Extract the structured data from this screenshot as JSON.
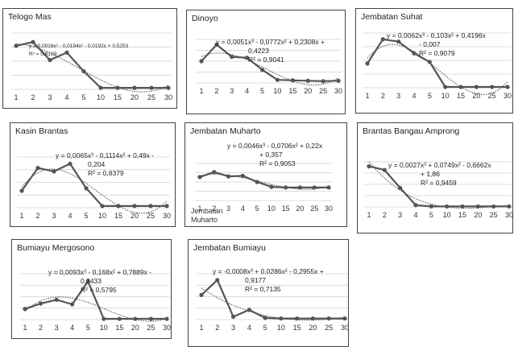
{
  "chart_data": [
    {
      "type": "line",
      "title": "Telogo Mas",
      "categories": [
        "1",
        "2",
        "3",
        "4",
        "5",
        "10",
        "15",
        "20",
        "25",
        "30"
      ],
      "series": [
        {
          "values": [
            5.8,
            6.3,
            3.9,
            4.9,
            2.4,
            0.2,
            0.2,
            0.2,
            0.2,
            0.2
          ]
        }
      ],
      "trendline": "polynomial",
      "equation_lines": [
        "y = 0,0016x³ - 0,0194x² - 0,0192x + 0,5253",
        "R² = 0,9109"
      ],
      "ylim": [
        0,
        7.5
      ],
      "grid": "horizontal"
    },
    {
      "type": "line",
      "title": "Dinoyo",
      "categories": [
        "1",
        "2",
        "3",
        "4",
        "5",
        "10",
        "15",
        "20",
        "25",
        "30"
      ],
      "series": [
        {
          "values": [
            2.5,
            4.4,
            3.0,
            2.9,
            1.5,
            0.35,
            0.3,
            0.25,
            0.2,
            0.25
          ]
        }
      ],
      "trendline": "polynomial",
      "equation_lines": [
        "y = 0,0051x³ - 0,0772x² + 0,2308x +",
        "0,4223",
        "R² = 0,9041"
      ],
      "ylim": [
        0,
        5
      ],
      "grid": "horizontal"
    },
    {
      "type": "line",
      "title": "Jembatan Suhat",
      "categories": [
        "1",
        "2",
        "3",
        "4",
        "5",
        "10",
        "15",
        "20",
        "25",
        "30"
      ],
      "series": [
        {
          "values": [
            3.1,
            6.2,
            5.9,
            4.4,
            3.3,
            0.1,
            0.1,
            0.1,
            0.1,
            0.1
          ]
        }
      ],
      "trendline": "polynomial",
      "equation_lines": [
        "y = 0,0062x³ - 0,103x² + 0,4196x",
        "- 0,007",
        "R² = 0,9079"
      ],
      "ylim": [
        0,
        7
      ],
      "grid": "horizontal"
    },
    {
      "type": "line",
      "title": "Kasin Brantas",
      "categories": [
        "1",
        "2",
        "3",
        "4",
        "5",
        "10",
        "15",
        "20",
        "25",
        "30"
      ],
      "series": [
        {
          "values": [
            2.0,
            4.7,
            4.3,
            5.2,
            2.3,
            0.2,
            0.2,
            0.2,
            0.2,
            0.2
          ]
        }
      ],
      "trendline": "polynomial",
      "equation_lines": [
        "y = 0,0065x³ - 0,1114x² + 0,49x -",
        "0,204",
        "R² = 0,8379"
      ],
      "ylim": [
        0,
        6
      ],
      "grid": "horizontal"
    },
    {
      "type": "line",
      "title": "Jembatan Muharto",
      "categories": [
        "1",
        "2",
        "3",
        "4",
        "5",
        "10",
        "15",
        "20",
        "25",
        "30"
      ],
      "series": [
        {
          "name": "Jembatan Muharto",
          "values": [
            3.8,
            4.6,
            3.9,
            4.0,
            3.0,
            2.2,
            2.1,
            2.1,
            2.1,
            2.1
          ]
        }
      ],
      "trendline": "polynomial",
      "equation_lines": [
        "y = 0,0046x³ - 0,0706x² + 0,22x",
        "+ 0,357",
        "R² = 0,9053"
      ],
      "ylim": [
        0,
        6
      ],
      "grid": "horizontal",
      "legend": "bottom-left"
    },
    {
      "type": "line",
      "title": "Brantas Bangau Amprong",
      "categories": [
        "1",
        "2",
        "3",
        "4",
        "5",
        "10",
        "15",
        "20",
        "25",
        "30"
      ],
      "series": [
        {
          "values": [
            4.5,
            4.1,
            2.1,
            0.2,
            0.05,
            0.05,
            0.05,
            0.05,
            0.05,
            0.05
          ]
        }
      ],
      "trendline": "polynomial",
      "equation_lines": [
        "y = 0,0027x³ + 0,0749x² - 0,6662x",
        "+ 1,86",
        "R² = 0,9459"
      ],
      "ylim": [
        0,
        5
      ],
      "grid": "horizontal"
    },
    {
      "type": "line",
      "title": "Bumiayu Mergosono",
      "categories": [
        "1",
        "2",
        "3",
        "4",
        "5",
        "10",
        "15",
        "20",
        "25",
        "30"
      ],
      "series": [
        {
          "values": [
            1.4,
            2.1,
            2.6,
            2.0,
            5.0,
            0.1,
            0.1,
            0.1,
            0.1,
            0.1
          ]
        }
      ],
      "trendline": "polynomial",
      "equation_lines": [
        "y = 0,0093x³ - 0,168x² + 0,7889x -",
        "0,3433",
        "R² = 0,5795"
      ],
      "ylim": [
        0,
        6
      ],
      "grid": "horizontal"
    },
    {
      "type": "line",
      "title": "Jembatan Bumiayu",
      "categories": [
        "1",
        "2",
        "3",
        "4",
        "5",
        "10",
        "15",
        "20",
        "25",
        "30"
      ],
      "series": [
        {
          "values": [
            4.3,
            6.9,
            0.5,
            1.7,
            0.3,
            0.2,
            0.2,
            0.2,
            0.2,
            0.2
          ]
        }
      ],
      "trendline": "polynomial",
      "equation_lines": [
        "y = -0,0008x³ + 0,0286x² - 0,2955x +",
        "0,9177",
        "R² = 0,7135"
      ],
      "ylim": [
        0,
        8
      ],
      "grid": "horizontal"
    }
  ],
  "colors": {
    "series": "#555555",
    "trendline": "#444444",
    "grid": "#d0d0d0",
    "border": "#444444"
  }
}
